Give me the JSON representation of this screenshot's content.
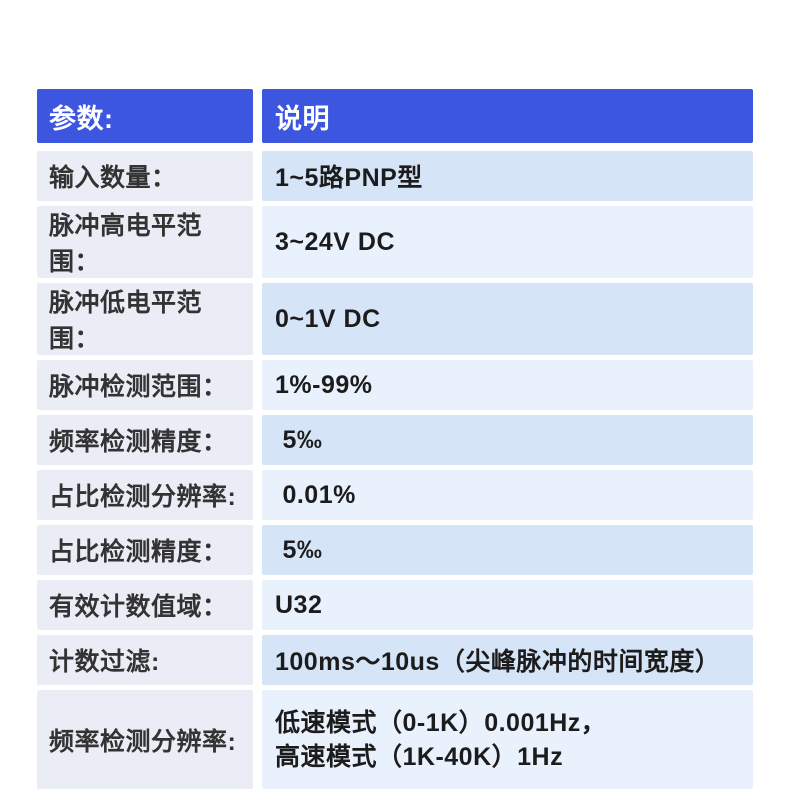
{
  "colors": {
    "header_bg": "#3c56e0",
    "header_text": "#ffffff",
    "label_bg": "#eaedf6",
    "label_text": "#333333",
    "value_blue": "#d6e4f8",
    "value_light": "#e9f1fc",
    "value_text": "#1c1c1c",
    "page_bg": "#ffffff"
  },
  "table": {
    "header": {
      "param_label": "参数:",
      "desc_label": "说明"
    },
    "rows": [
      {
        "label": "输入数量：",
        "value": "1~5路PNP型",
        "shade": "blue"
      },
      {
        "label": "脉冲高电平范围：",
        "value": "3~24V DC",
        "shade": "light"
      },
      {
        "label": "脉冲低电平范围：",
        "value": "0~1V DC",
        "shade": "blue"
      },
      {
        "label": "脉冲检测范围：",
        "value": "1%-99%",
        "shade": "light"
      },
      {
        "label": "频率检测精度：",
        "value": " 5‰",
        "shade": "blue"
      },
      {
        "label": "占比检测分辨率:",
        "value": " 0.01%",
        "shade": "light"
      },
      {
        "label": "占比检测精度：",
        "value": " 5‰",
        "shade": "blue"
      },
      {
        "label": "有效计数值域：",
        "value": "U32",
        "shade": "light"
      },
      {
        "label": "计数过滤:",
        "value": "100ms～10us（尖峰脉冲的时间宽度）",
        "shade": "blue"
      },
      {
        "label": "频率检测分辨率:",
        "value_lines": [
          "低速模式（0-1K）0.001Hz，",
          "高速模式（1K-40K）1Hz"
        ],
        "shade": "light"
      }
    ]
  }
}
